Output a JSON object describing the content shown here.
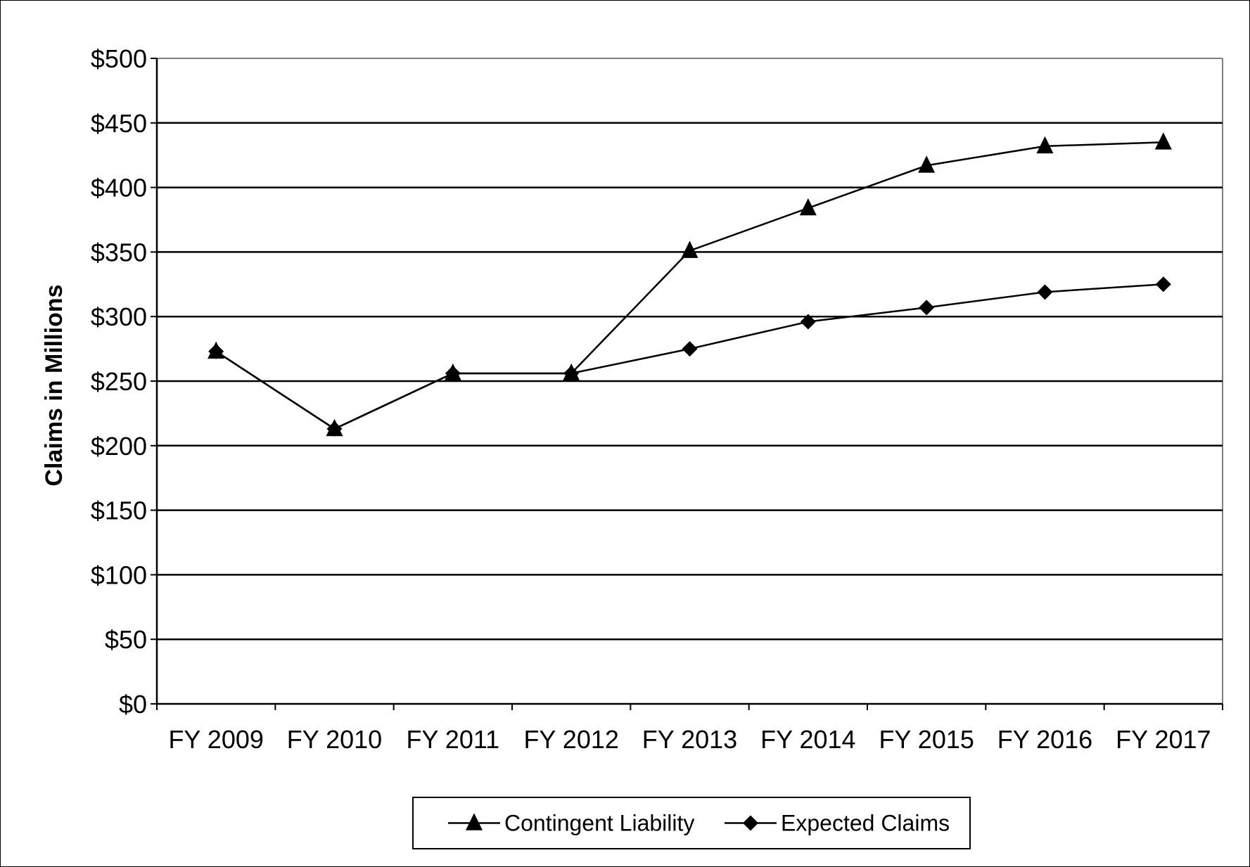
{
  "chart_data": {
    "type": "line",
    "title": "",
    "xlabel": "",
    "ylabel": "Claims in Millions",
    "ylim": [
      0,
      500
    ],
    "y_ticks": [
      0,
      50,
      100,
      150,
      200,
      250,
      300,
      350,
      400,
      450,
      500
    ],
    "y_tick_labels": [
      "$0",
      "$50",
      "$100",
      "$150",
      "$200",
      "$250",
      "$300",
      "$350",
      "$400",
      "$450",
      "$500"
    ],
    "categories": [
      "FY 2009",
      "FY 2010",
      "FY 2011",
      "FY 2012",
      "FY 2013",
      "FY 2014",
      "FY 2015",
      "FY 2016",
      "FY 2017"
    ],
    "series": [
      {
        "name": "Contingent Liability",
        "marker": "triangle",
        "color": "#000000",
        "values": [
          273,
          213,
          256,
          256,
          351,
          384,
          417,
          432,
          435
        ]
      },
      {
        "name": "Expected Claims",
        "marker": "diamond",
        "color": "#000000",
        "values": [
          273,
          213,
          256,
          256,
          275,
          296,
          307,
          319,
          325
        ]
      }
    ],
    "grid": true,
    "legend_position": "bottom-center"
  }
}
